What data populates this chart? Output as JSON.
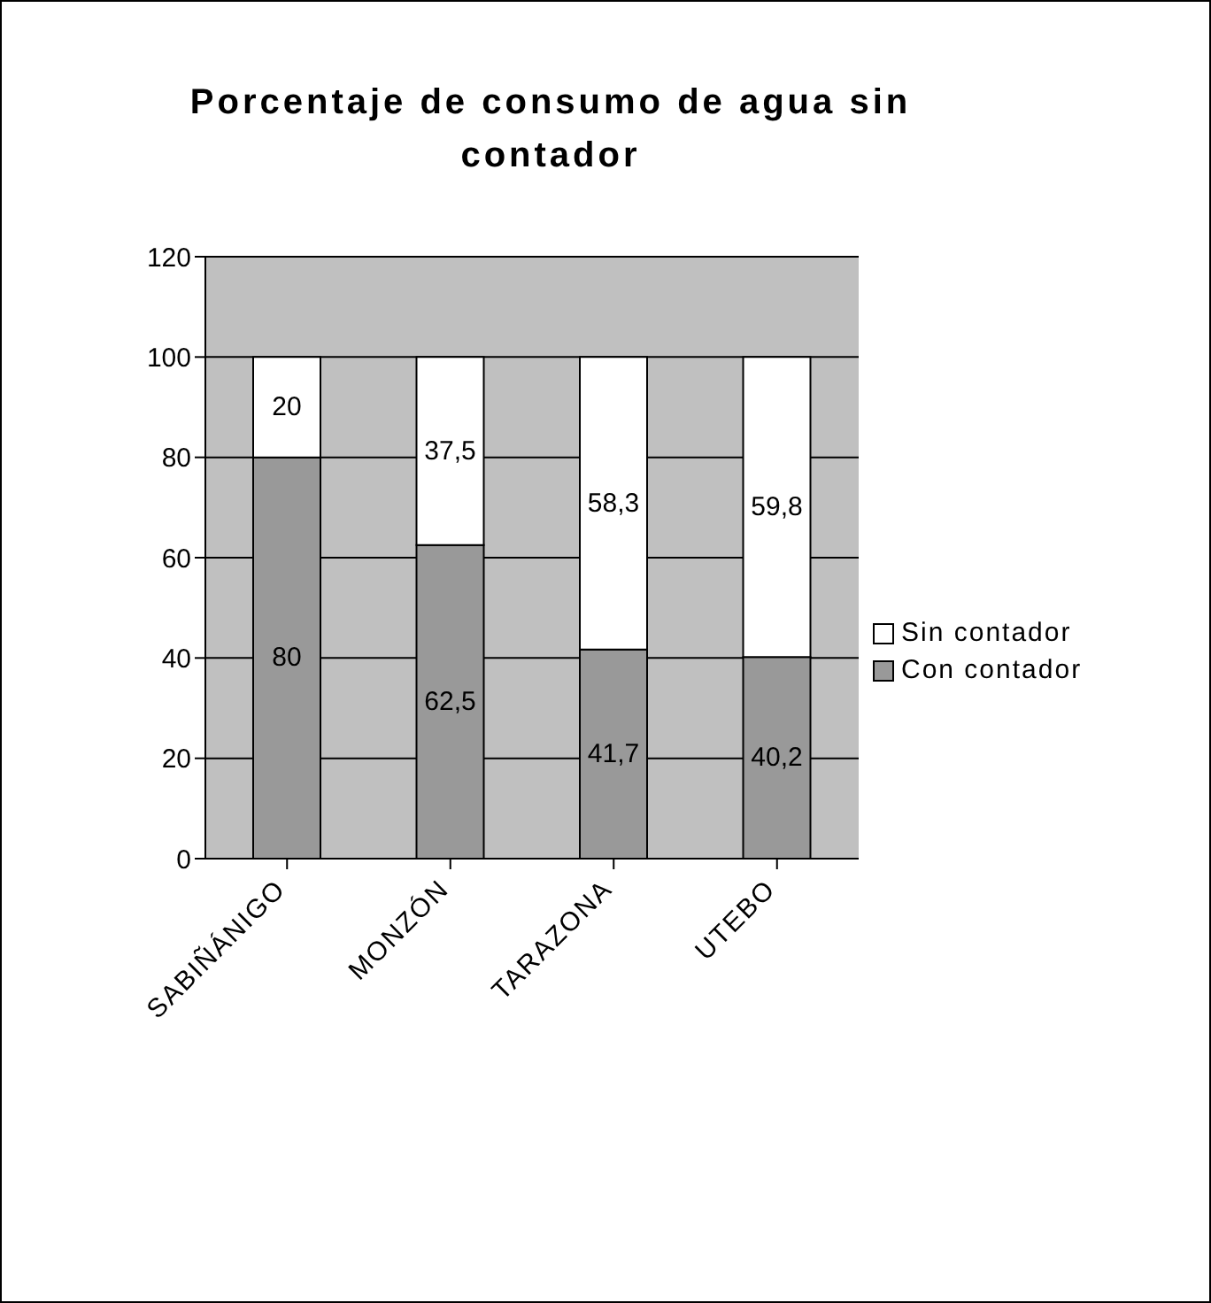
{
  "chart_data": {
    "type": "bar",
    "title": "Porcentaje de consumo de agua sin contador",
    "categories": [
      "SABIÑÁNIGO",
      "MONZÓN",
      "TARAZONA",
      "UTEBO"
    ],
    "stacked": true,
    "series": [
      {
        "name": "Con contador",
        "color": "#999999",
        "values": [
          80,
          62.5,
          41.7,
          40.2
        ],
        "value_labels": [
          "80",
          "62,5",
          "41,7",
          "40,2"
        ]
      },
      {
        "name": "Sin contador",
        "color": "#ffffff",
        "values": [
          20,
          37.5,
          58.3,
          59.8
        ],
        "value_labels": [
          "20",
          "37,5",
          "58,3",
          "59,8"
        ]
      }
    ],
    "ylim": [
      0,
      120
    ],
    "yticks": [
      0,
      20,
      40,
      60,
      80,
      100,
      120
    ],
    "grid": "y",
    "legend": "right"
  }
}
